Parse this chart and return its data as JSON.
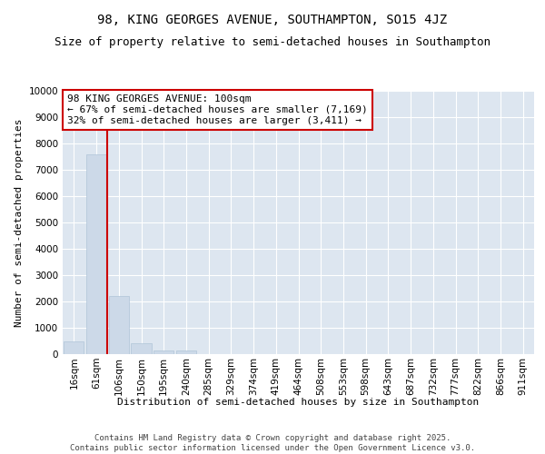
{
  "title": "98, KING GEORGES AVENUE, SOUTHAMPTON, SO15 4JZ",
  "subtitle": "Size of property relative to semi-detached houses in Southampton",
  "xlabel": "Distribution of semi-detached houses by size in Southampton",
  "ylabel": "Number of semi-detached properties",
  "bins": [
    "16sqm",
    "61sqm",
    "106sqm",
    "150sqm",
    "195sqm",
    "240sqm",
    "285sqm",
    "329sqm",
    "374sqm",
    "419sqm",
    "464sqm",
    "508sqm",
    "553sqm",
    "598sqm",
    "643sqm",
    "687sqm",
    "732sqm",
    "777sqm",
    "822sqm",
    "866sqm",
    "911sqm"
  ],
  "values": [
    500,
    7580,
    2200,
    400,
    150,
    130,
    0,
    0,
    0,
    0,
    0,
    0,
    0,
    0,
    0,
    0,
    0,
    0,
    0,
    0,
    0
  ],
  "bar_color": "#ccd9e8",
  "bar_edge_color": "#b0c4d8",
  "vline_after_bin": 1,
  "vline_color": "#cc0000",
  "annotation_text": "98 KING GEORGES AVENUE: 100sqm\n← 67% of semi-detached houses are smaller (7,169)\n32% of semi-detached houses are larger (3,411) →",
  "annotation_box_color": "#cc0000",
  "ylim": [
    0,
    10000
  ],
  "yticks": [
    0,
    1000,
    2000,
    3000,
    4000,
    5000,
    6000,
    7000,
    8000,
    9000,
    10000
  ],
  "background_color": "#dde6f0",
  "grid_color": "#ffffff",
  "footer": "Contains HM Land Registry data © Crown copyright and database right 2025.\nContains public sector information licensed under the Open Government Licence v3.0.",
  "title_fontsize": 10,
  "subtitle_fontsize": 9,
  "label_fontsize": 8,
  "tick_fontsize": 7.5,
  "annotation_fontsize": 8,
  "footer_fontsize": 6.5
}
